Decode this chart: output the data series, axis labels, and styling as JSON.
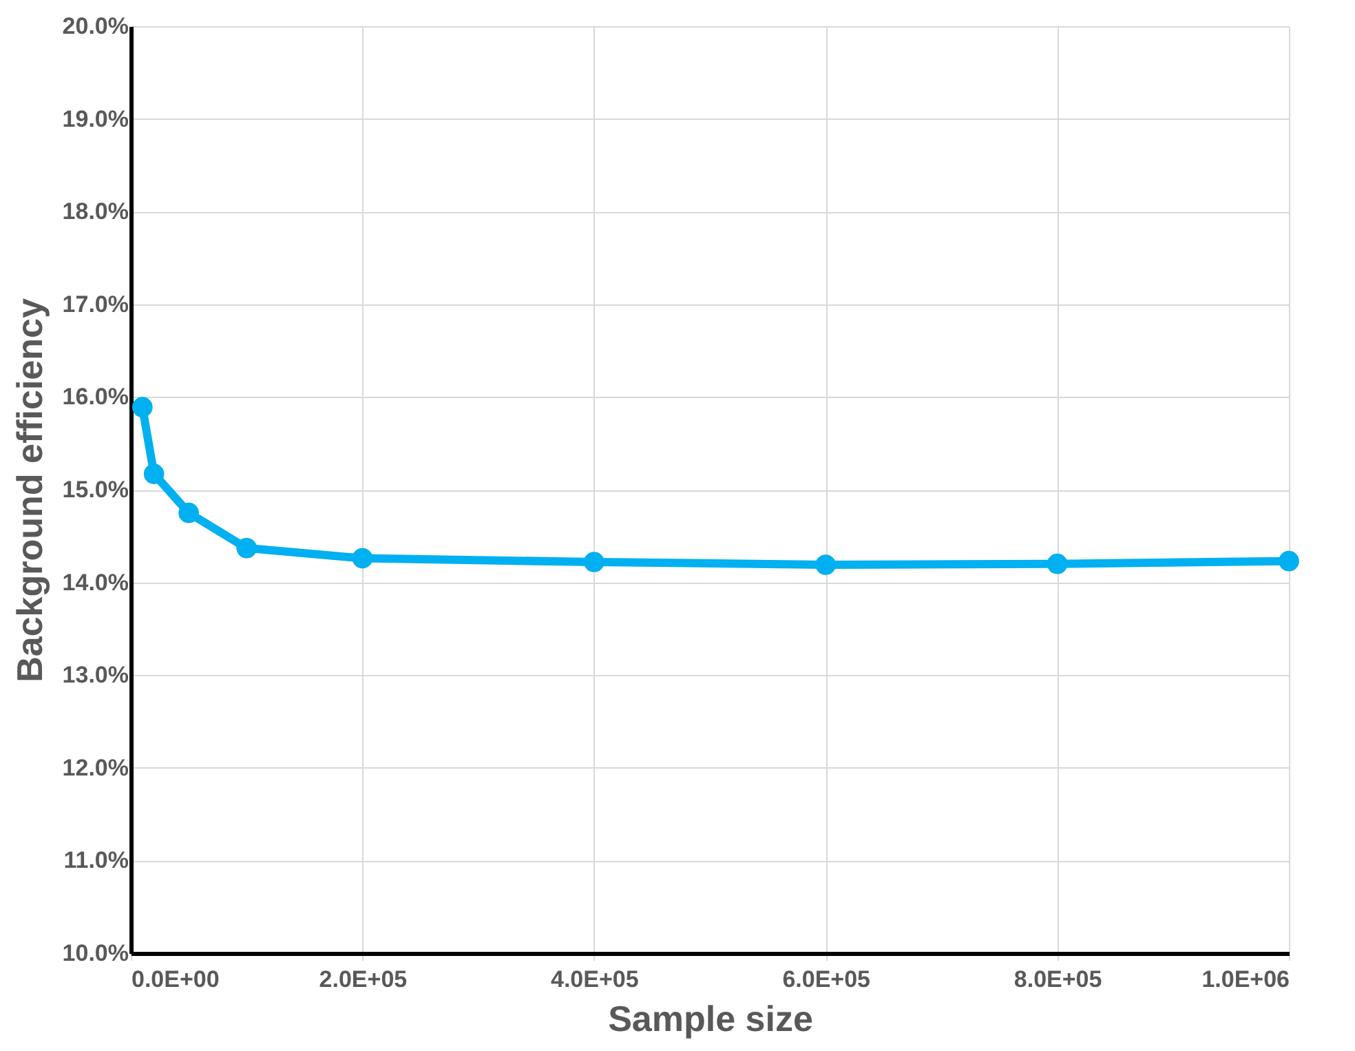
{
  "chart_data": {
    "type": "line",
    "xlabel": "Sample size",
    "ylabel": "Background efficiency",
    "x": [
      10000,
      20000,
      50000,
      100000,
      200000,
      400000,
      600000,
      800000,
      1000000
    ],
    "series": [
      {
        "color": "#00b0f0",
        "values": [
          15.89,
          15.17,
          14.75,
          14.37,
          14.26,
          14.22,
          14.19,
          14.2,
          14.23
        ]
      }
    ],
    "xlim": [
      0,
      1000000
    ],
    "xticks": [
      {
        "value": 0,
        "label": "0.0E+00"
      },
      {
        "value": 200000,
        "label": "2.0E+05"
      },
      {
        "value": 400000,
        "label": "4.0E+05"
      },
      {
        "value": 600000,
        "label": "6.0E+05"
      },
      {
        "value": 800000,
        "label": "8.0E+05"
      },
      {
        "value": 1000000,
        "label": "1.0E+06"
      }
    ],
    "ylim": [
      10,
      20
    ],
    "yticks": [
      {
        "value": 10,
        "label": "10.0%"
      },
      {
        "value": 11,
        "label": "11.0%"
      },
      {
        "value": 12,
        "label": "12.0%"
      },
      {
        "value": 13,
        "label": "13.0%"
      },
      {
        "value": 14,
        "label": "14.0%"
      },
      {
        "value": 15,
        "label": "15.0%"
      },
      {
        "value": 16,
        "label": "16.0%"
      },
      {
        "value": 17,
        "label": "17.0%"
      },
      {
        "value": 18,
        "label": "18.0%"
      },
      {
        "value": 19,
        "label": "19.0%"
      },
      {
        "value": 20,
        "label": "20.0%"
      }
    ],
    "grid": true,
    "marker": "circle",
    "line_style": "solid"
  }
}
